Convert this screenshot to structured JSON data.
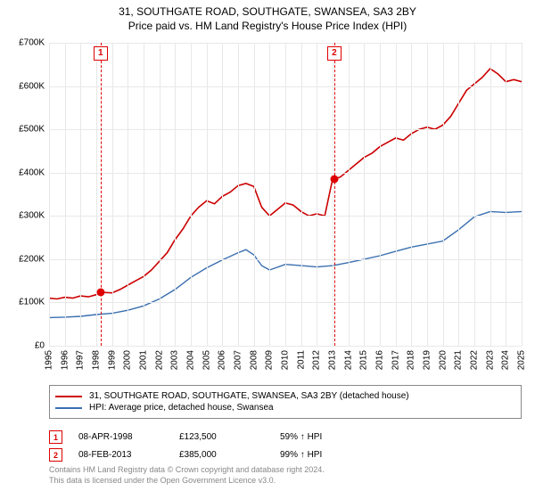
{
  "title": {
    "line1": "31, SOUTHGATE ROAD, SOUTHGATE, SWANSEA, SA3 2BY",
    "line2": "Price paid vs. HM Land Registry's House Price Index (HPI)"
  },
  "chart": {
    "type": "line",
    "x_min": 1995,
    "x_max": 2025,
    "y_min": 0,
    "y_max": 700000,
    "y_ticks": [
      0,
      100000,
      200000,
      300000,
      400000,
      500000,
      600000,
      700000
    ],
    "y_tick_labels": [
      "£0",
      "£100K",
      "£200K",
      "£300K",
      "£400K",
      "£500K",
      "£600K",
      "£700K"
    ],
    "x_ticks": [
      1995,
      1996,
      1997,
      1998,
      1999,
      2000,
      2001,
      2002,
      2003,
      2004,
      2005,
      2006,
      2007,
      2008,
      2009,
      2010,
      2011,
      2012,
      2013,
      2014,
      2015,
      2016,
      2017,
      2018,
      2019,
      2020,
      2021,
      2022,
      2023,
      2024,
      2025
    ],
    "grid_color": "#e8e8e8",
    "axis_color": "#888888",
    "background_color": "#ffffff",
    "series": [
      {
        "name": "price_paid",
        "color": "#cc0000",
        "width": 1.6,
        "legend": "31, SOUTHGATE ROAD, SOUTHGATE, SWANSEA, SA3 2BY (detached house)",
        "data": [
          [
            1995,
            110000
          ],
          [
            1995.5,
            108000
          ],
          [
            1996,
            112000
          ],
          [
            1996.5,
            110000
          ],
          [
            1997,
            115000
          ],
          [
            1997.5,
            113000
          ],
          [
            1998,
            118000
          ],
          [
            1998.27,
            123500
          ],
          [
            1999,
            122000
          ],
          [
            1999.5,
            130000
          ],
          [
            2000,
            140000
          ],
          [
            2000.5,
            150000
          ],
          [
            2001,
            160000
          ],
          [
            2001.5,
            175000
          ],
          [
            2002,
            195000
          ],
          [
            2002.5,
            215000
          ],
          [
            2003,
            245000
          ],
          [
            2003.5,
            270000
          ],
          [
            2004,
            300000
          ],
          [
            2004.5,
            320000
          ],
          [
            2005,
            335000
          ],
          [
            2005.5,
            328000
          ],
          [
            2006,
            345000
          ],
          [
            2006.5,
            355000
          ],
          [
            2007,
            370000
          ],
          [
            2007.5,
            375000
          ],
          [
            2008,
            368000
          ],
          [
            2008.5,
            320000
          ],
          [
            2009,
            300000
          ],
          [
            2009.5,
            315000
          ],
          [
            2010,
            330000
          ],
          [
            2010.5,
            325000
          ],
          [
            2011,
            310000
          ],
          [
            2011.5,
            300000
          ],
          [
            2012,
            305000
          ],
          [
            2012.5,
            300000
          ],
          [
            2013,
            385000
          ],
          [
            2013.11,
            385000
          ],
          [
            2013.5,
            390000
          ],
          [
            2014,
            405000
          ],
          [
            2014.5,
            420000
          ],
          [
            2015,
            435000
          ],
          [
            2015.5,
            445000
          ],
          [
            2016,
            460000
          ],
          [
            2016.5,
            470000
          ],
          [
            2017,
            480000
          ],
          [
            2017.5,
            475000
          ],
          [
            2018,
            490000
          ],
          [
            2018.5,
            500000
          ],
          [
            2019,
            505000
          ],
          [
            2019.5,
            500000
          ],
          [
            2020,
            510000
          ],
          [
            2020.5,
            530000
          ],
          [
            2021,
            560000
          ],
          [
            2021.5,
            590000
          ],
          [
            2022,
            605000
          ],
          [
            2022.5,
            620000
          ],
          [
            2023,
            640000
          ],
          [
            2023.5,
            628000
          ],
          [
            2024,
            610000
          ],
          [
            2024.5,
            615000
          ],
          [
            2025,
            610000
          ]
        ]
      },
      {
        "name": "hpi",
        "color": "#3a6fb0",
        "width": 1.4,
        "legend": "HPI: Average price, detached house, Swansea",
        "data": [
          [
            1995,
            65000
          ],
          [
            1996,
            66000
          ],
          [
            1997,
            68000
          ],
          [
            1998,
            72000
          ],
          [
            1999,
            75000
          ],
          [
            2000,
            82000
          ],
          [
            2001,
            92000
          ],
          [
            2002,
            108000
          ],
          [
            2003,
            130000
          ],
          [
            2004,
            158000
          ],
          [
            2005,
            180000
          ],
          [
            2006,
            198000
          ],
          [
            2007,
            215000
          ],
          [
            2007.5,
            222000
          ],
          [
            2008,
            210000
          ],
          [
            2008.5,
            185000
          ],
          [
            2009,
            175000
          ],
          [
            2010,
            188000
          ],
          [
            2011,
            185000
          ],
          [
            2012,
            182000
          ],
          [
            2013,
            185000
          ],
          [
            2014,
            192000
          ],
          [
            2015,
            200000
          ],
          [
            2016,
            208000
          ],
          [
            2017,
            218000
          ],
          [
            2018,
            228000
          ],
          [
            2019,
            235000
          ],
          [
            2020,
            242000
          ],
          [
            2021,
            268000
          ],
          [
            2022,
            298000
          ],
          [
            2023,
            310000
          ],
          [
            2024,
            308000
          ],
          [
            2025,
            310000
          ]
        ]
      }
    ],
    "sale_markers": [
      {
        "n": "1",
        "x": 1998.27,
        "y": 123500
      },
      {
        "n": "2",
        "x": 2013.11,
        "y": 385000
      }
    ]
  },
  "sales": [
    {
      "n": "1",
      "date": "08-APR-1998",
      "price": "£123,500",
      "delta": "59% ↑ HPI"
    },
    {
      "n": "2",
      "date": "08-FEB-2013",
      "price": "£385,000",
      "delta": "99% ↑ HPI"
    }
  ],
  "footer": {
    "line1": "Contains HM Land Registry data © Crown copyright and database right 2024.",
    "line2": "This data is licensed under the Open Government Licence v3.0."
  }
}
